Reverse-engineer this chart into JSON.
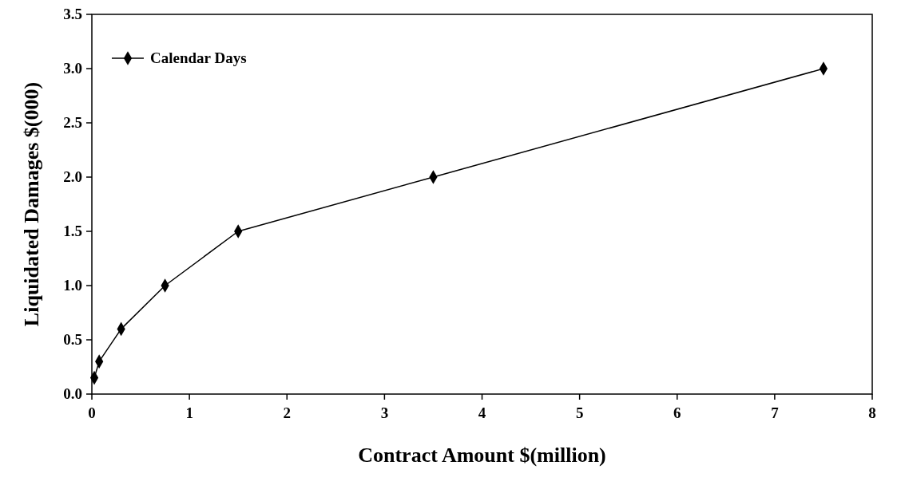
{
  "chart_data": {
    "type": "line",
    "xlabel": "Contract Amount $(million)",
    "ylabel": "Liquidated Damages $(000)",
    "x": [
      0.025,
      0.075,
      0.3,
      0.75,
      1.5,
      3.5,
      7.5
    ],
    "series": [
      {
        "name": "Calendar Days",
        "color": "#000000",
        "values": [
          0.15,
          0.3,
          0.6,
          1.0,
          1.5,
          2.0,
          3.0
        ]
      }
    ],
    "xlim": [
      0,
      8
    ],
    "xticks": [
      0,
      1,
      2,
      3,
      4,
      5,
      6,
      7,
      8
    ],
    "ylim": [
      0,
      3.5
    ],
    "yticks": [
      {
        "value": 0,
        "label": "0.0"
      },
      {
        "value": 0.5,
        "label": "0.5"
      },
      {
        "value": 1,
        "label": "1.0"
      },
      {
        "value": 1.5,
        "label": "1.5"
      },
      {
        "value": 2,
        "label": "2.0"
      },
      {
        "value": 2.5,
        "label": "2.5"
      },
      {
        "value": 3,
        "label": "3.0"
      },
      {
        "value": 3.5,
        "label": "3.5"
      }
    ],
    "grid": false,
    "legend": "top left",
    "marker": "diamond",
    "line_style": "solid"
  }
}
